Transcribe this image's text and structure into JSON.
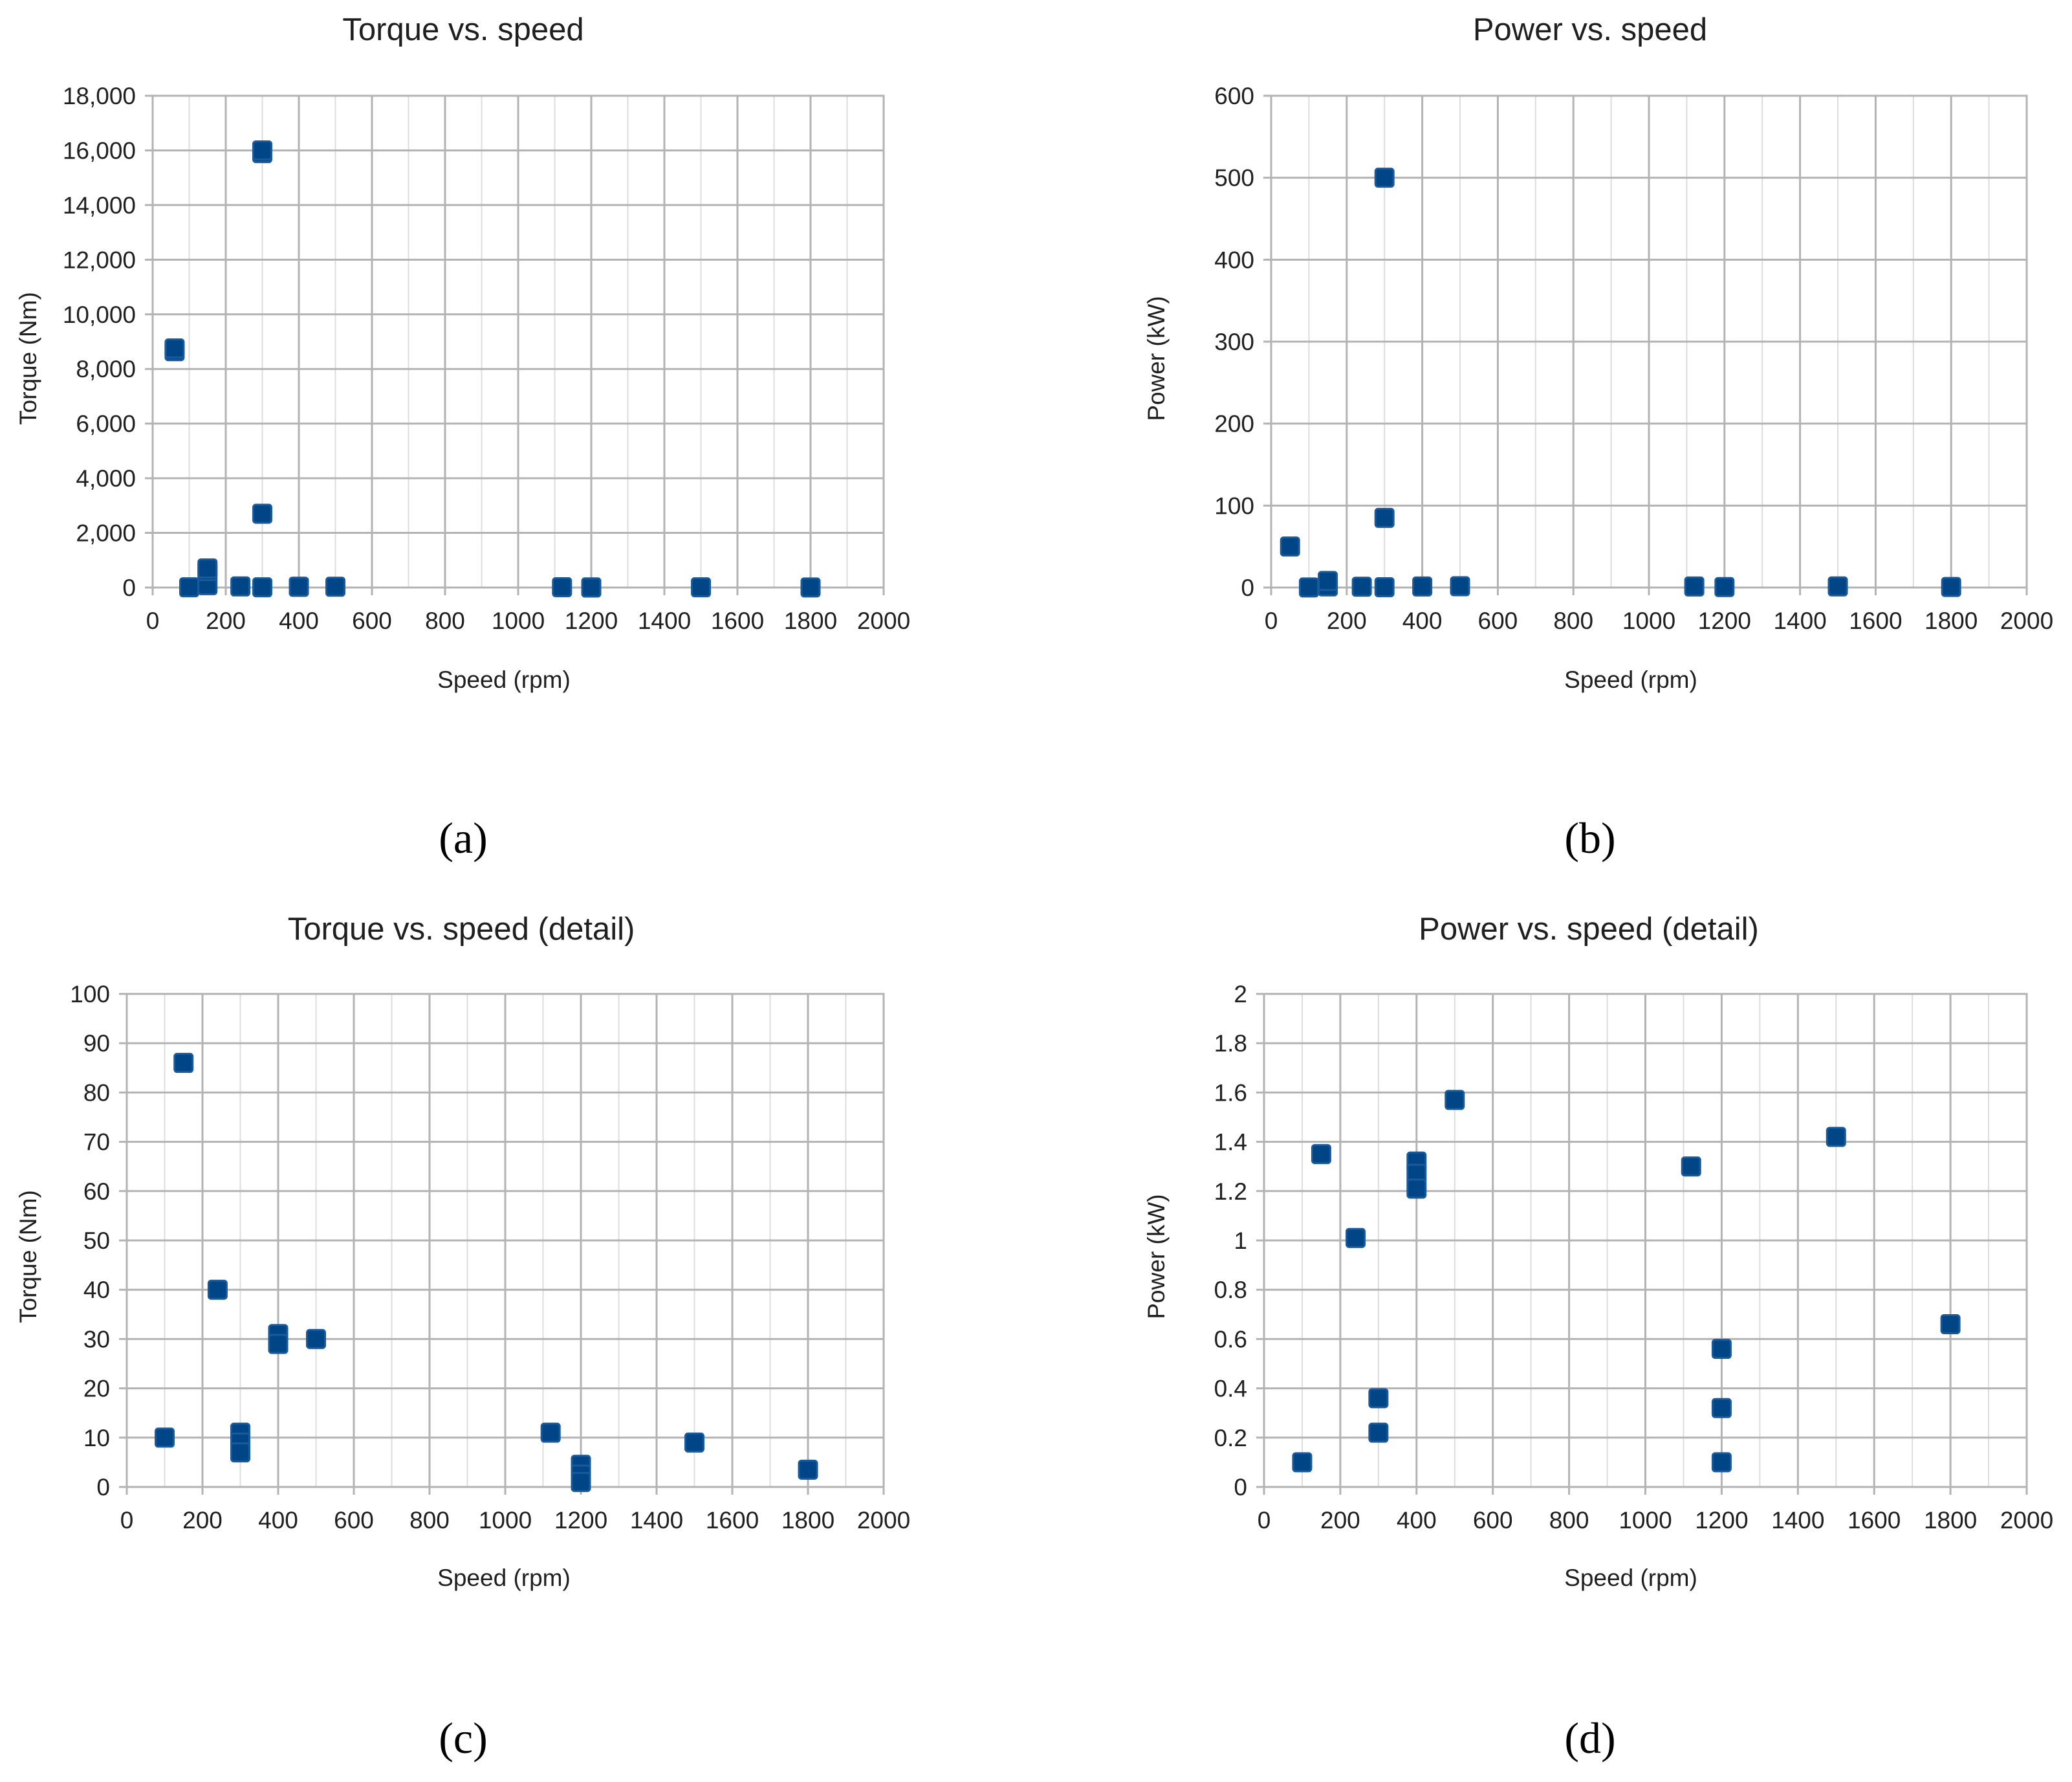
{
  "colors": {
    "marker": "#004586",
    "grid": "#b3b3b3",
    "text": "#1f1f1f"
  },
  "chart_data": [
    {
      "id": "a",
      "type": "scatter",
      "title": "Torque vs. speed",
      "xlabel": "Speed (rpm)",
      "ylabel": "Torque (Nm)",
      "panel_label": "(a)",
      "xlim": [
        0,
        2000
      ],
      "ylim": [
        0,
        18000
      ],
      "grid": true,
      "xticks": [
        0,
        200,
        400,
        600,
        800,
        1000,
        1200,
        1400,
        1600,
        1800,
        2000
      ],
      "xtick_labels": [
        "0",
        "200",
        "400",
        "600",
        "800",
        "1000",
        "1200",
        "1400",
        "1600",
        "1800",
        "2000"
      ],
      "yticks": [
        0,
        2000,
        4000,
        6000,
        8000,
        10000,
        12000,
        14000,
        16000,
        18000
      ],
      "ytick_labels": [
        "0",
        "2,000",
        "4,000",
        "6,000",
        "8,000",
        "10,000",
        "12,000",
        "14,000",
        "16,000",
        "18,000"
      ],
      "series": [
        {
          "name": "Torque",
          "x": [
            60,
            60,
            100,
            150,
            150,
            150,
            240,
            300,
            300,
            300,
            300,
            400,
            400,
            500,
            1120,
            1200,
            1200,
            1500,
            1800
          ],
          "y": [
            8650,
            8750,
            10,
            86,
            600,
            700,
            40,
            15900,
            16000,
            2700,
            10,
            30,
            28,
            30,
            11,
            5,
            1,
            9,
            4
          ]
        }
      ]
    },
    {
      "id": "b",
      "type": "scatter",
      "title": "Power vs. speed",
      "xlabel": "Speed (rpm)",
      "ylabel": "Power (kW)",
      "panel_label": "(b)",
      "xlim": [
        0,
        2000
      ],
      "ylim": [
        0,
        600
      ],
      "grid": true,
      "xticks": [
        0,
        200,
        400,
        600,
        800,
        1000,
        1200,
        1400,
        1600,
        1800,
        2000
      ],
      "xtick_labels": [
        "0",
        "200",
        "400",
        "600",
        "800",
        "1000",
        "1200",
        "1400",
        "1600",
        "1800",
        "2000"
      ],
      "yticks": [
        0,
        100,
        200,
        300,
        400,
        500,
        600
      ],
      "ytick_labels": [
        "0",
        "100",
        "200",
        "300",
        "400",
        "500",
        "600"
      ],
      "series": [
        {
          "name": "Power",
          "x": [
            50,
            100,
            150,
            150,
            240,
            300,
            300,
            300,
            400,
            500,
            1120,
            1200,
            1500,
            1800
          ],
          "y": [
            50,
            0.1,
            1.35,
            8,
            1.0,
            500,
            85,
            0.36,
            1.3,
            1.57,
            1.3,
            0.56,
            1.42,
            0.66
          ]
        }
      ]
    },
    {
      "id": "c",
      "type": "scatter",
      "title": "Torque vs. speed (detail)",
      "xlabel": "Speed (rpm)",
      "ylabel": "Torque (Nm)",
      "panel_label": "(c)",
      "xlim": [
        0,
        2000
      ],
      "ylim": [
        0,
        100
      ],
      "grid": true,
      "xticks": [
        0,
        200,
        400,
        600,
        800,
        1000,
        1200,
        1400,
        1600,
        1800,
        2000
      ],
      "xtick_labels": [
        "0",
        "200",
        "400",
        "600",
        "800",
        "1000",
        "1200",
        "1400",
        "1600",
        "1800",
        "2000"
      ],
      "yticks": [
        0,
        10,
        20,
        30,
        40,
        50,
        60,
        70,
        80,
        90,
        100
      ],
      "ytick_labels": [
        "0",
        "10",
        "20",
        "30",
        "40",
        "50",
        "60",
        "70",
        "80",
        "90",
        "100"
      ],
      "series": [
        {
          "name": "Torque",
          "x": [
            100,
            150,
            240,
            300,
            300,
            300,
            400,
            400,
            500,
            1120,
            1200,
            1200,
            1200,
            1500,
            1800
          ],
          "y": [
            10,
            86,
            40,
            11,
            9,
            7,
            31,
            29,
            30,
            11,
            4.5,
            2.5,
            1,
            9,
            3.5
          ]
        }
      ]
    },
    {
      "id": "d",
      "type": "scatter",
      "title": "Power vs. speed (detail)",
      "xlabel": "Speed (rpm)",
      "ylabel": "Power (kW)",
      "panel_label": "(d)",
      "xlim": [
        0,
        2000
      ],
      "ylim": [
        0,
        2
      ],
      "grid": true,
      "xticks": [
        0,
        200,
        400,
        600,
        800,
        1000,
        1200,
        1400,
        1600,
        1800,
        2000
      ],
      "xtick_labels": [
        "0",
        "200",
        "400",
        "600",
        "800",
        "1000",
        "1200",
        "1400",
        "1600",
        "1800",
        "2000"
      ],
      "yticks": [
        0,
        0.2,
        0.4,
        0.6,
        0.8,
        1,
        1.2,
        1.4,
        1.6,
        1.8,
        2
      ],
      "ytick_labels": [
        "0",
        "0.2",
        "0.4",
        "0.6",
        "0.8",
        "1",
        "1.2",
        "1.4",
        "1.6",
        "1.8",
        "2"
      ],
      "series": [
        {
          "name": "Power",
          "x": [
            100,
            150,
            240,
            300,
            300,
            400,
            400,
            400,
            500,
            1120,
            1200,
            1200,
            1200,
            1500,
            1800
          ],
          "y": [
            0.1,
            1.35,
            1.01,
            0.36,
            0.22,
            1.32,
            1.27,
            1.21,
            1.57,
            1.3,
            0.56,
            0.32,
            0.1,
            1.42,
            0.66
          ]
        }
      ]
    }
  ]
}
